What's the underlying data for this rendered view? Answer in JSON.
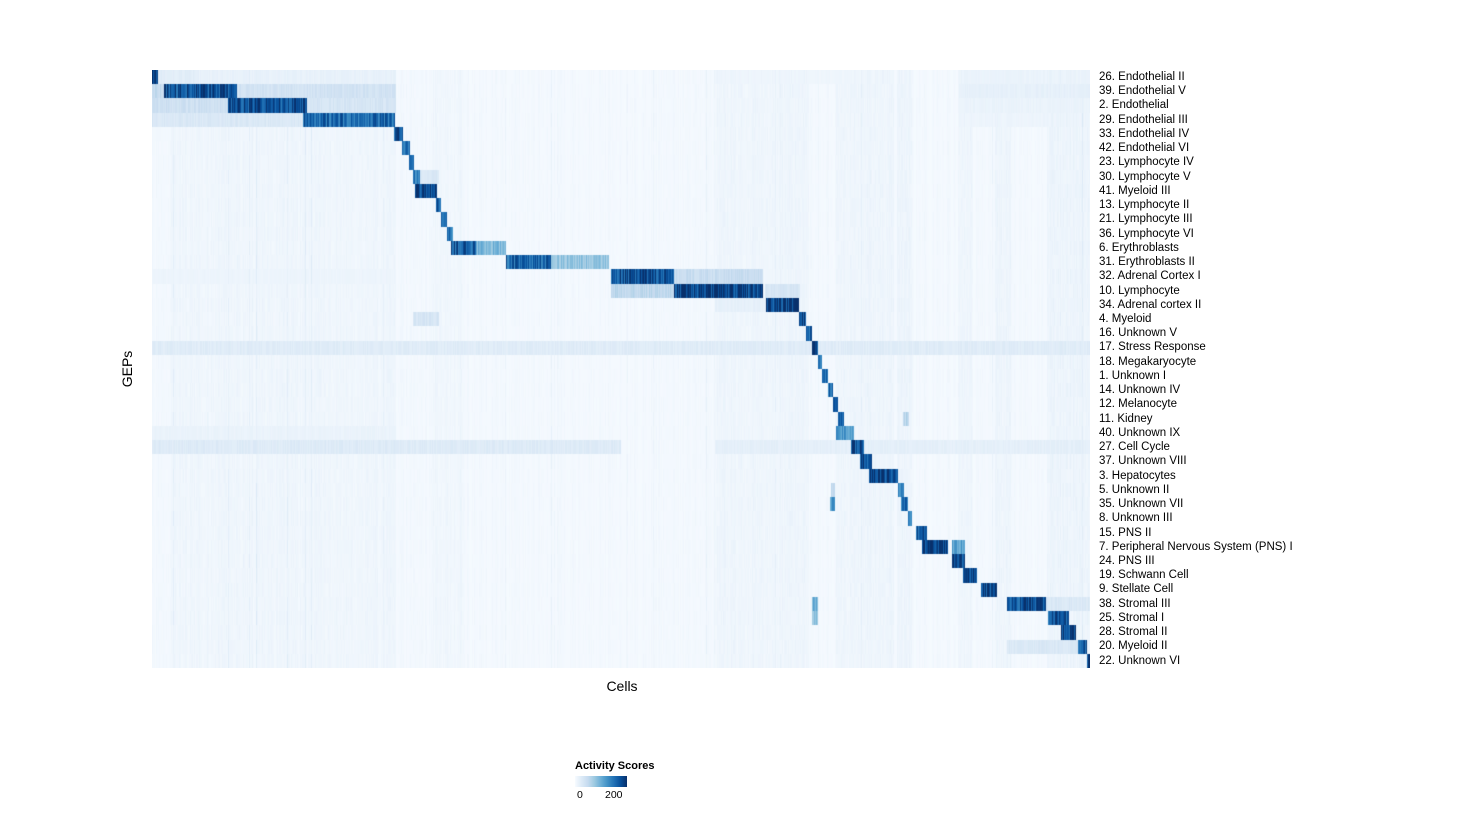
{
  "chart_data": {
    "type": "heatmap",
    "title": "",
    "xlabel": "Cells",
    "ylabel": "GEPs",
    "colorbar": {
      "title": "Activity Scores",
      "min": 0,
      "max": 200,
      "min_label": "0",
      "max_label": "200",
      "colormap": "Blues",
      "low_color": "#f7fbff",
      "high_color": "#08306b"
    },
    "value_units": "activity score (0–200+), x axis = cells ordered by cluster, segments = [start_fraction, end_fraction, score]",
    "column_bands": [
      [
        0.02,
        0.26,
        5
      ],
      [
        0.3,
        0.33,
        4
      ],
      [
        0.6,
        0.7,
        6
      ],
      [
        0.73,
        0.79,
        7
      ],
      [
        0.795,
        0.81,
        8
      ],
      [
        0.86,
        0.875,
        6
      ],
      [
        0.9,
        0.915,
        7
      ],
      [
        0.955,
        1.0,
        8
      ]
    ],
    "rows": [
      {
        "label": "26.  Endothelial II",
        "segments": [
          [
            0.0,
            0.006,
            230
          ],
          [
            0.006,
            0.05,
            25
          ],
          [
            0.05,
            0.26,
            18
          ],
          [
            0.6,
            0.75,
            10
          ],
          [
            0.86,
            1.0,
            15
          ]
        ]
      },
      {
        "label": "39.  Endothelial V",
        "segments": [
          [
            0.0,
            0.012,
            60
          ],
          [
            0.012,
            0.09,
            210
          ],
          [
            0.09,
            0.26,
            45
          ],
          [
            0.86,
            1.0,
            20
          ]
        ]
      },
      {
        "label": "2.  Endothelial",
        "segments": [
          [
            0.0,
            0.08,
            50
          ],
          [
            0.08,
            0.165,
            210
          ],
          [
            0.165,
            0.26,
            40
          ],
          [
            0.86,
            1.0,
            15
          ]
        ]
      },
      {
        "label": "29.  Endothelial III",
        "segments": [
          [
            0.0,
            0.16,
            35
          ],
          [
            0.16,
            0.258,
            190
          ],
          [
            0.86,
            1.0,
            12
          ]
        ]
      },
      {
        "label": "33.  Endothelial IV",
        "segments": [
          [
            0.0,
            0.257,
            6
          ],
          [
            0.257,
            0.267,
            210
          ]
        ]
      },
      {
        "label": "42.  Endothelial VI",
        "segments": [
          [
            0.266,
            0.274,
            190
          ]
        ]
      },
      {
        "label": "23.  Lymphocyte IV",
        "segments": [
          [
            0.273,
            0.279,
            190
          ]
        ]
      },
      {
        "label": "30.  Lymphocyte V",
        "segments": [
          [
            0.278,
            0.285,
            170
          ],
          [
            0.285,
            0.305,
            35
          ]
        ]
      },
      {
        "label": "41.  Myeloid III",
        "segments": [
          [
            0.28,
            0.303,
            220
          ]
        ]
      },
      {
        "label": "13.  Lymphocyte II",
        "segments": [
          [
            0.302,
            0.308,
            190
          ]
        ]
      },
      {
        "label": "21.  Lymphocyte III",
        "segments": [
          [
            0.308,
            0.314,
            180
          ]
        ]
      },
      {
        "label": "36.  Lymphocyte VI",
        "segments": [
          [
            0.314,
            0.32,
            170
          ]
        ]
      },
      {
        "label": "6.  Erythroblasts",
        "segments": [
          [
            0.318,
            0.345,
            200
          ],
          [
            0.345,
            0.377,
            110
          ]
        ]
      },
      {
        "label": "31.  Erythroblasts II",
        "segments": [
          [
            0.377,
            0.425,
            190
          ],
          [
            0.425,
            0.487,
            95
          ]
        ]
      },
      {
        "label": "32.  Adrenal Cortex I",
        "segments": [
          [
            0.0,
            0.26,
            12
          ],
          [
            0.489,
            0.556,
            210
          ],
          [
            0.556,
            0.651,
            55
          ]
        ]
      },
      {
        "label": "10.  Lymphocyte",
        "segments": [
          [
            0.489,
            0.556,
            65
          ],
          [
            0.556,
            0.651,
            225
          ],
          [
            0.653,
            0.69,
            40
          ]
        ]
      },
      {
        "label": "34.  Adrenal cortex II",
        "segments": [
          [
            0.6,
            0.654,
            20
          ],
          [
            0.654,
            0.689,
            225
          ]
        ]
      },
      {
        "label": "4.  Myeloid",
        "segments": [
          [
            0.278,
            0.305,
            40
          ],
          [
            0.689,
            0.697,
            210
          ]
        ]
      },
      {
        "label": "16.  Unknown V",
        "segments": [
          [
            0.697,
            0.703,
            190
          ]
        ]
      },
      {
        "label": "17.  Stress Response",
        "segments": [
          [
            0.0,
            0.703,
            28
          ],
          [
            0.703,
            0.709,
            210
          ],
          [
            0.709,
            1.0,
            28
          ]
        ]
      },
      {
        "label": "18.  Megakaryocyte",
        "segments": [
          [
            0.709,
            0.714,
            190
          ]
        ]
      },
      {
        "label": "1.  Unknown I",
        "segments": [
          [
            0.714,
            0.72,
            180
          ]
        ]
      },
      {
        "label": "14.  Unknown IV",
        "segments": [
          [
            0.72,
            0.726,
            190
          ]
        ]
      },
      {
        "label": "12.  Melanocyte",
        "segments": [
          [
            0.726,
            0.731,
            190
          ]
        ]
      },
      {
        "label": "11.  Kidney",
        "segments": [
          [
            0.731,
            0.737,
            190
          ],
          [
            0.8,
            0.807,
            70
          ]
        ]
      },
      {
        "label": "40.  Unknown IX",
        "segments": [
          [
            0.0,
            0.26,
            15
          ],
          [
            0.729,
            0.748,
            150
          ]
        ]
      },
      {
        "label": "27.  Cell Cycle",
        "segments": [
          [
            0.0,
            0.5,
            30
          ],
          [
            0.6,
            1.0,
            22
          ],
          [
            0.745,
            0.758,
            210
          ]
        ]
      },
      {
        "label": "37.  Unknown VIII",
        "segments": [
          [
            0.754,
            0.767,
            205
          ]
        ]
      },
      {
        "label": "3.  Hepatocytes",
        "segments": [
          [
            0.764,
            0.795,
            225
          ]
        ]
      },
      {
        "label": "5.  Unknown II",
        "segments": [
          [
            0.723,
            0.728,
            60
          ],
          [
            0.795,
            0.801,
            170
          ]
        ]
      },
      {
        "label": "35.  Unknown VII",
        "segments": [
          [
            0.722,
            0.728,
            140
          ],
          [
            0.798,
            0.805,
            180
          ]
        ]
      },
      {
        "label": "8.  Unknown III",
        "segments": [
          [
            0.805,
            0.81,
            170
          ]
        ]
      },
      {
        "label": "15.  PNS II",
        "segments": [
          [
            0.814,
            0.826,
            205
          ]
        ]
      },
      {
        "label": "7.  Peripheral Nervous System (PNS) I",
        "segments": [
          [
            0.82,
            0.848,
            230
          ],
          [
            0.852,
            0.866,
            130
          ]
        ]
      },
      {
        "label": "24.  PNS III",
        "segments": [
          [
            0.852,
            0.866,
            220
          ]
        ]
      },
      {
        "label": "19.  Schwann Cell",
        "segments": [
          [
            0.864,
            0.879,
            225
          ]
        ]
      },
      {
        "label": "9.  Stellate Cell",
        "segments": [
          [
            0.883,
            0.9,
            225
          ]
        ]
      },
      {
        "label": "38.  Stromal III",
        "segments": [
          [
            0.703,
            0.709,
            120
          ],
          [
            0.911,
            0.953,
            210
          ],
          [
            0.953,
            1.0,
            35
          ]
        ]
      },
      {
        "label": "25.  Stromal I",
        "segments": [
          [
            0.703,
            0.709,
            100
          ],
          [
            0.955,
            0.977,
            205
          ]
        ]
      },
      {
        "label": "28.  Stromal II",
        "segments": [
          [
            0.969,
            0.985,
            215
          ]
        ]
      },
      {
        "label": "20.  Myeloid II",
        "segments": [
          [
            0.911,
            0.987,
            35
          ],
          [
            0.987,
            0.996,
            205
          ]
        ]
      },
      {
        "label": "22.  Unknown VI",
        "segments": [
          [
            0.996,
            1.0,
            235
          ]
        ]
      }
    ]
  }
}
